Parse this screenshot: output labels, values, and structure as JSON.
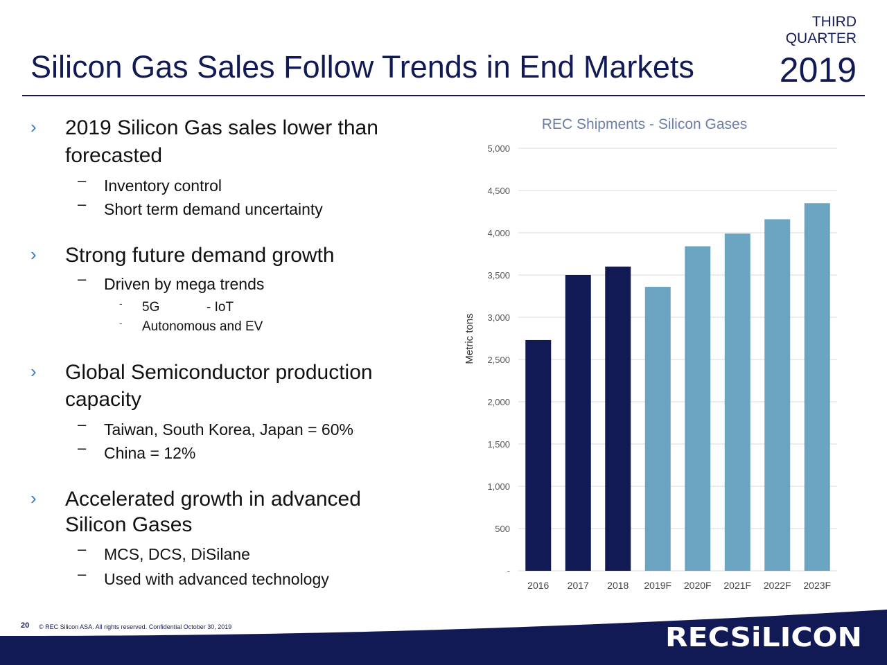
{
  "header": {
    "title": "Silicon Gas Sales Follow Trends in End Markets",
    "quarter_line1": "THIRD",
    "quarter_line2": "QUARTER",
    "year": "2019"
  },
  "bullets": [
    {
      "lines": [
        "2019 Silicon Gas sales lower than",
        "forecasted"
      ],
      "subs": [
        "Inventory control",
        "Short term demand uncertainty"
      ]
    },
    {
      "lines": [
        "Strong future demand growth"
      ],
      "subs": [
        "Driven by mega trends"
      ],
      "subsubs": [
        "5G",
        "- IoT",
        "Autonomous and EV"
      ]
    },
    {
      "lines": [
        "Global Semiconductor production",
        "capacity"
      ],
      "subs": [
        "Taiwan, South Korea, Japan = 60%",
        "China = 12%"
      ]
    },
    {
      "lines": [
        "Accelerated growth in advanced",
        "Silicon Gases"
      ],
      "subs": [
        "MCS, DCS, DiSilane",
        "Used with advanced technology"
      ]
    }
  ],
  "chart_data": {
    "type": "bar",
    "title": "REC Shipments - Silicon Gases",
    "ylabel": "Metric tons",
    "xlabel": "",
    "ylim": [
      0,
      5000
    ],
    "yticks": [
      0,
      500,
      1000,
      1500,
      2000,
      2500,
      3000,
      3500,
      4000,
      4500,
      5000
    ],
    "ytick_labels": [
      "-",
      "500",
      "1,000",
      "1,500",
      "2,000",
      "2,500",
      "3,000",
      "3,500",
      "4,000",
      "4,500",
      "5,000"
    ],
    "categories": [
      "2016",
      "2017",
      "2018",
      "2019F",
      "2020F",
      "2021F",
      "2022F",
      "2023F"
    ],
    "values": [
      2730,
      3500,
      3600,
      3360,
      3840,
      3990,
      4160,
      4350
    ],
    "bar_colors": [
      "#121a56",
      "#121a56",
      "#121a56",
      "#6aa4c0",
      "#6aa4c0",
      "#6aa4c0",
      "#6aa4c0",
      "#6aa4c0"
    ],
    "grid": true,
    "legend": "none"
  },
  "footer": {
    "page_number": "20",
    "copyright": "© REC Silicon ASA. All rights reserved. Confidential October 30, 2019",
    "logo_text": "RECSiLICON"
  },
  "colors": {
    "navy": "#121a56",
    "light_blue": "#6aa4c0",
    "bullet_blue": "#3b7ec3",
    "grid": "#d9d9d9"
  }
}
